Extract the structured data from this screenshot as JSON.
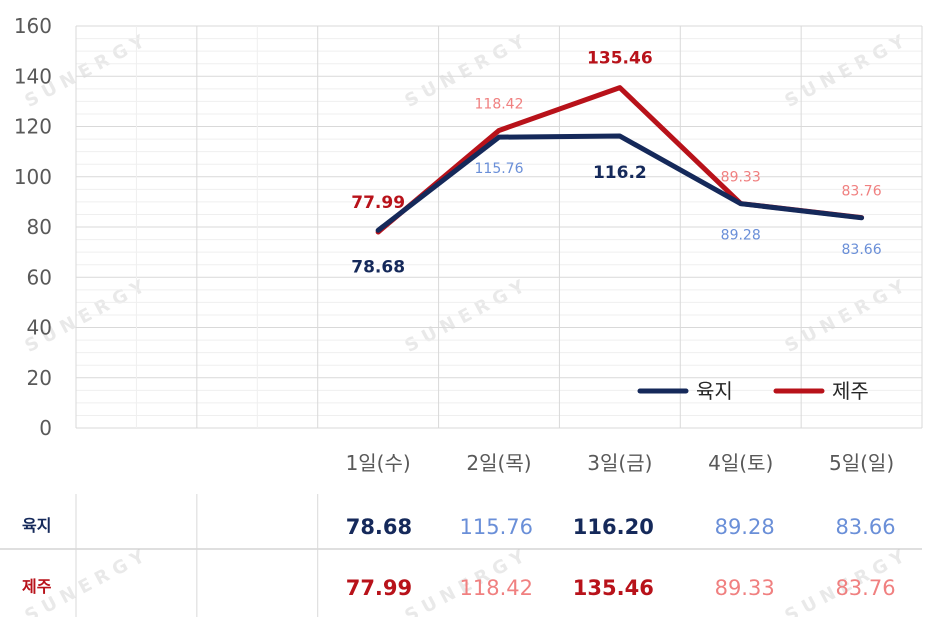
{
  "chart_data": {
    "type": "line",
    "categories": [
      "",
      "",
      "1일(수)",
      "2일(목)",
      "3일(금)",
      "4일(토)",
      "5일(일)"
    ],
    "ylim": [
      0,
      160
    ],
    "yticks": [
      "0",
      "20",
      "40",
      "60",
      "80",
      "100",
      "120",
      "140",
      "160"
    ],
    "grid": true,
    "legend_position": "bottom-right",
    "series": [
      {
        "name": "육지",
        "color": "#15295a",
        "values": [
          null,
          null,
          78.68,
          115.76,
          116.2,
          89.28,
          83.66
        ],
        "point_labels": [
          null,
          null,
          "78.68",
          "115.76",
          "116.2",
          "89.28",
          "83.66"
        ],
        "label_colors": [
          null,
          null,
          "#15295a",
          "#6a8fd8",
          "#15295a",
          "#6a8fd8",
          "#6a8fd8"
        ],
        "label_bold": [
          false,
          false,
          true,
          false,
          true,
          false,
          false
        ],
        "table_labels": [
          "",
          "",
          "78.68",
          "115.76",
          "116.20",
          "89.28",
          "83.66"
        ]
      },
      {
        "name": "제주",
        "color": "#b8121a",
        "values": [
          null,
          null,
          77.99,
          118.42,
          135.46,
          89.33,
          83.76
        ],
        "point_labels": [
          null,
          null,
          "77.99",
          "118.42",
          "135.46",
          "89.33",
          "83.76"
        ],
        "label_colors": [
          null,
          null,
          "#b8121a",
          "#f08080",
          "#b8121a",
          "#f08080",
          "#f08080"
        ],
        "label_bold": [
          false,
          false,
          true,
          false,
          true,
          false,
          false
        ],
        "table_labels": [
          "",
          "",
          "77.99",
          "118.42",
          "135.46",
          "89.33",
          "83.76"
        ]
      }
    ]
  },
  "watermark": "SUNERGY",
  "colors": {
    "grid": "#d9d9d9",
    "axis_text": "#595959"
  }
}
